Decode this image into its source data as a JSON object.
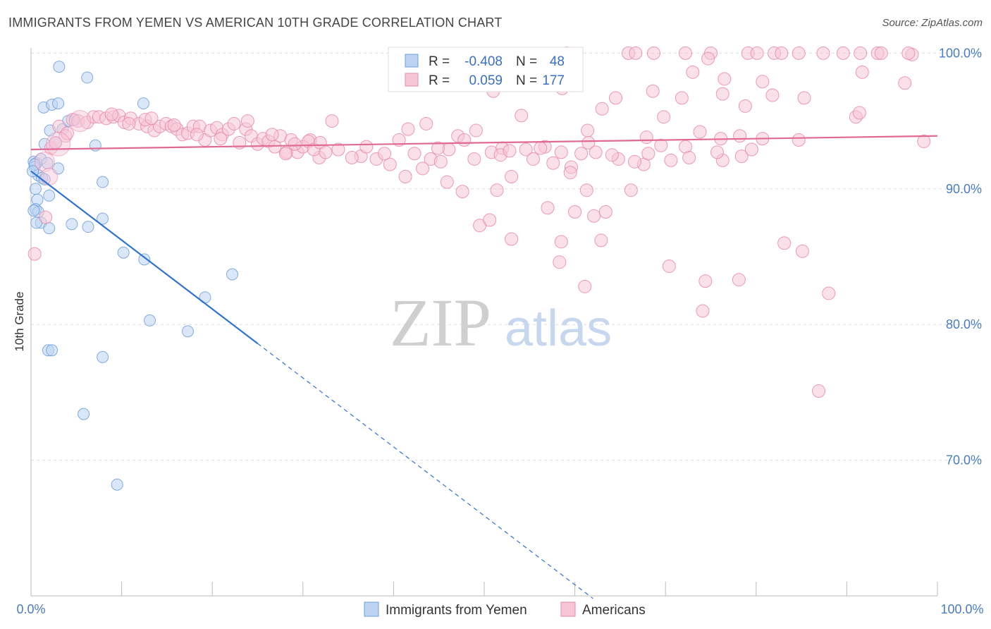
{
  "title": "IMMIGRANTS FROM YEMEN VS AMERICAN 10TH GRADE CORRELATION CHART",
  "source": "Source: ZipAtlas.com",
  "watermark": {
    "zip": "ZIP",
    "atlas": "atlas"
  },
  "colors": {
    "blue": "#6e9fdc",
    "blue_fill": "#bcd3f2",
    "blue_line": "#2f72d2",
    "pink": "#e88aa8",
    "pink_fill": "#f6c6d6",
    "pink_line": "#e06a95",
    "grid": "#dddddd",
    "tick_text": "#4a7cc4"
  },
  "chart_data": {
    "type": "scatter",
    "title": "IMMIGRANTS FROM YEMEN VS AMERICAN 10TH GRADE CORRELATION CHART",
    "xlabel": "",
    "ylabel": "10th Grade",
    "xlim": [
      0,
      100
    ],
    "ylim": [
      60,
      100.8
    ],
    "x_tick_labels": {
      "left": "0.0%",
      "right": "100.0%"
    },
    "y_ticks": [
      {
        "value": 100,
        "label": "100.0%"
      },
      {
        "value": 90,
        "label": "90.0%"
      },
      {
        "value": 80,
        "label": "80.0%"
      },
      {
        "value": 70,
        "label": "70.0%"
      }
    ],
    "legend": {
      "rows": [
        {
          "r_label": "R =",
          "r_value": "-0.408",
          "n_label": "N =",
          "n_value": "48"
        },
        {
          "r_label": "R =",
          "r_value": "0.059",
          "n_label": "N =",
          "n_value": "177"
        }
      ]
    },
    "series": [
      {
        "name": "Immigrants from Yemen",
        "color": "blue",
        "trend": {
          "x0": 0,
          "y0": 91.3,
          "x1": 25,
          "y1": 78.6,
          "dashed_to_x": 62
        },
        "points": [
          [
            3.1,
            99.0
          ],
          [
            6.2,
            98.2
          ],
          [
            1.4,
            96.0
          ],
          [
            2.3,
            96.2
          ],
          [
            3.0,
            96.3
          ],
          [
            12.4,
            96.3
          ],
          [
            2.1,
            94.3
          ],
          [
            3.5,
            94.4
          ],
          [
            4.8,
            95.1
          ],
          [
            1.5,
            93.3
          ],
          [
            7.1,
            93.2
          ],
          [
            0.3,
            92.0
          ],
          [
            0.6,
            91.9
          ],
          [
            1.1,
            92.2
          ],
          [
            0.4,
            91.6
          ],
          [
            1.8,
            91.9
          ],
          [
            3.0,
            91.5
          ],
          [
            0.8,
            91.0
          ],
          [
            1.2,
            90.8
          ],
          [
            7.9,
            90.5
          ],
          [
            0.5,
            90.0
          ],
          [
            2.0,
            89.5
          ],
          [
            0.7,
            89.2
          ],
          [
            0.5,
            88.5
          ],
          [
            0.8,
            88.3
          ],
          [
            1.1,
            87.5
          ],
          [
            0.6,
            87.5
          ],
          [
            4.5,
            87.4
          ],
          [
            6.3,
            87.2
          ],
          [
            7.9,
            87.8
          ],
          [
            2.0,
            87.1
          ],
          [
            10.2,
            85.3
          ],
          [
            12.5,
            84.8
          ],
          [
            22.2,
            83.7
          ],
          [
            19.2,
            82.0
          ],
          [
            13.1,
            80.3
          ],
          [
            17.3,
            79.5
          ],
          [
            1.9,
            78.1
          ],
          [
            2.3,
            78.1
          ],
          [
            7.9,
            77.6
          ],
          [
            5.8,
            73.4
          ],
          [
            9.5,
            68.2
          ],
          [
            0.4,
            91.8
          ],
          [
            0.2,
            91.3
          ],
          [
            1.5,
            90.7
          ],
          [
            0.3,
            88.4
          ],
          [
            4.1,
            95.0
          ],
          [
            2.7,
            93.4
          ]
        ]
      },
      {
        "name": "Americans",
        "color": "pink",
        "trend": {
          "x0": 0,
          "y0": 92.9,
          "x1": 100,
          "y1": 93.9
        },
        "points": [
          [
            59.1,
            100.0
          ],
          [
            65.9,
            100.0
          ],
          [
            66.7,
            100.0
          ],
          [
            68.7,
            100.0
          ],
          [
            72.2,
            100.0
          ],
          [
            75.0,
            100.0
          ],
          [
            79.1,
            100.0
          ],
          [
            80.1,
            100.0
          ],
          [
            82.0,
            100.0
          ],
          [
            82.8,
            100.0
          ],
          [
            87.4,
            100.0
          ],
          [
            89.6,
            100.0
          ],
          [
            91.5,
            100.0
          ],
          [
            93.4,
            100.0
          ],
          [
            93.8,
            100.0
          ],
          [
            84.7,
            100.0
          ],
          [
            97.2,
            99.9
          ],
          [
            96.8,
            100.0
          ],
          [
            74.7,
            99.6
          ],
          [
            73.0,
            98.6
          ],
          [
            76.5,
            98.1
          ],
          [
            55.9,
            97.8
          ],
          [
            51.0,
            97.2
          ],
          [
            58.6,
            97.4
          ],
          [
            68.6,
            97.2
          ],
          [
            71.8,
            96.7
          ],
          [
            76.3,
            97.0
          ],
          [
            64.5,
            96.7
          ],
          [
            80.7,
            97.9
          ],
          [
            85.3,
            96.7
          ],
          [
            91.7,
            98.6
          ],
          [
            96.4,
            97.8
          ],
          [
            81.8,
            96.9
          ],
          [
            78.8,
            96.1
          ],
          [
            63.0,
            95.9
          ],
          [
            54.1,
            95.4
          ],
          [
            91.0,
            95.3
          ],
          [
            91.4,
            95.6
          ],
          [
            69.8,
            95.3
          ],
          [
            33.2,
            95.0
          ],
          [
            41.6,
            94.4
          ],
          [
            43.6,
            94.8
          ],
          [
            49.1,
            94.3
          ],
          [
            47.1,
            93.9
          ],
          [
            61.5,
            93.4
          ],
          [
            61.4,
            94.3
          ],
          [
            67.9,
            93.8
          ],
          [
            69.5,
            93.2
          ],
          [
            76.1,
            93.7
          ],
          [
            73.8,
            94.2
          ],
          [
            78.2,
            93.9
          ],
          [
            80.7,
            93.7
          ],
          [
            84.7,
            93.6
          ],
          [
            28.2,
            92.7
          ],
          [
            30.8,
            93.6
          ],
          [
            31.8,
            92.3
          ],
          [
            36.4,
            92.4
          ],
          [
            38.1,
            92.2
          ],
          [
            40.6,
            93.6
          ],
          [
            42.3,
            92.6
          ],
          [
            44.1,
            92.2
          ],
          [
            46.1,
            92.9
          ],
          [
            47.8,
            93.6
          ],
          [
            50.8,
            92.7
          ],
          [
            52.0,
            93.0
          ],
          [
            54.6,
            92.9
          ],
          [
            56.7,
            93.1
          ],
          [
            58.5,
            92.7
          ],
          [
            62.3,
            92.7
          ],
          [
            64.8,
            92.2
          ],
          [
            67.6,
            91.8
          ],
          [
            70.6,
            92.1
          ],
          [
            72.2,
            93.1
          ],
          [
            76.3,
            92.1
          ],
          [
            78.4,
            92.4
          ],
          [
            48.9,
            92.2
          ],
          [
            45.2,
            92.0
          ],
          [
            35.4,
            92.3
          ],
          [
            39.6,
            91.8
          ],
          [
            43.2,
            91.5
          ],
          [
            59.6,
            91.6
          ],
          [
            57.6,
            91.9
          ],
          [
            66.6,
            92.0
          ],
          [
            51.8,
            92.5
          ],
          [
            55.4,
            92.2
          ],
          [
            41.3,
            90.9
          ],
          [
            45.9,
            90.5
          ],
          [
            53.0,
            90.9
          ],
          [
            59.5,
            91.2
          ],
          [
            51.4,
            89.9
          ],
          [
            47.6,
            89.8
          ],
          [
            61.3,
            89.9
          ],
          [
            66.2,
            89.9
          ],
          [
            57.0,
            88.6
          ],
          [
            60.0,
            88.3
          ],
          [
            62.1,
            88.0
          ],
          [
            63.4,
            88.3
          ],
          [
            49.5,
            87.3
          ],
          [
            50.6,
            87.7
          ],
          [
            53.0,
            86.3
          ],
          [
            58.5,
            86.1
          ],
          [
            62.9,
            86.2
          ],
          [
            83.1,
            86.0
          ],
          [
            85.1,
            85.4
          ],
          [
            58.3,
            84.6
          ],
          [
            70.4,
            84.3
          ],
          [
            74.4,
            83.2
          ],
          [
            78.1,
            83.3
          ],
          [
            61.1,
            82.8
          ],
          [
            88.0,
            82.3
          ],
          [
            74.1,
            81.0
          ],
          [
            86.9,
            75.1
          ],
          [
            98.5,
            93.5
          ],
          [
            0.4,
            85.2
          ],
          [
            1.6,
            87.9
          ],
          [
            2.2,
            93.0
          ],
          [
            3.1,
            94.6
          ],
          [
            4.6,
            95.1
          ],
          [
            5.2,
            95.0
          ],
          [
            6.2,
            94.9
          ],
          [
            6.9,
            95.3
          ],
          [
            7.5,
            95.3
          ],
          [
            8.3,
            95.2
          ],
          [
            9.1,
            95.3
          ],
          [
            9.7,
            95.4
          ],
          [
            10.3,
            94.9
          ],
          [
            11.0,
            95.2
          ],
          [
            11.9,
            94.8
          ],
          [
            12.8,
            94.6
          ],
          [
            13.6,
            94.3
          ],
          [
            14.2,
            94.6
          ],
          [
            14.9,
            94.8
          ],
          [
            15.5,
            94.6
          ],
          [
            16.1,
            94.4
          ],
          [
            16.7,
            94.0
          ],
          [
            17.3,
            94.1
          ],
          [
            17.9,
            94.6
          ],
          [
            18.6,
            94.6
          ],
          [
            19.2,
            93.6
          ],
          [
            19.8,
            94.3
          ],
          [
            20.5,
            94.5
          ],
          [
            21.1,
            94.0
          ],
          [
            21.8,
            94.4
          ],
          [
            22.4,
            94.8
          ],
          [
            23.0,
            93.4
          ],
          [
            23.7,
            94.4
          ],
          [
            24.3,
            93.9
          ],
          [
            25.0,
            93.3
          ],
          [
            25.6,
            93.7
          ],
          [
            26.2,
            93.5
          ],
          [
            26.9,
            93.1
          ],
          [
            27.5,
            93.9
          ],
          [
            28.1,
            92.6
          ],
          [
            28.7,
            93.6
          ],
          [
            29.4,
            92.7
          ],
          [
            30.0,
            93.1
          ],
          [
            30.6,
            93.5
          ],
          [
            31.2,
            92.9
          ],
          [
            31.9,
            93.4
          ],
          [
            32.5,
            92.7
          ],
          [
            12.6,
            95.1
          ],
          [
            13.3,
            95.2
          ],
          [
            3.8,
            93.9
          ],
          [
            2.7,
            93.4
          ],
          [
            4.0,
            94.1
          ],
          [
            8.9,
            95.5
          ],
          [
            10.8,
            94.8
          ],
          [
            15.8,
            94.7
          ],
          [
            18.3,
            94.0
          ],
          [
            20.9,
            93.7
          ],
          [
            23.9,
            95.0
          ],
          [
            26.6,
            94.0
          ],
          [
            29.1,
            93.3
          ],
          [
            33.9,
            92.9
          ],
          [
            37.0,
            93.1
          ],
          [
            39.0,
            92.6
          ],
          [
            44.9,
            93.0
          ],
          [
            52.8,
            92.8
          ],
          [
            56.2,
            93.0
          ],
          [
            60.7,
            92.6
          ],
          [
            64.1,
            92.5
          ],
          [
            68.1,
            92.6
          ],
          [
            72.6,
            92.3
          ],
          [
            75.7,
            92.7
          ],
          [
            79.5,
            92.9
          ]
        ]
      }
    ]
  },
  "bottom_legend": [
    {
      "label": "Immigrants from Yemen",
      "color": "blue"
    },
    {
      "label": "Americans",
      "color": "pink"
    }
  ]
}
